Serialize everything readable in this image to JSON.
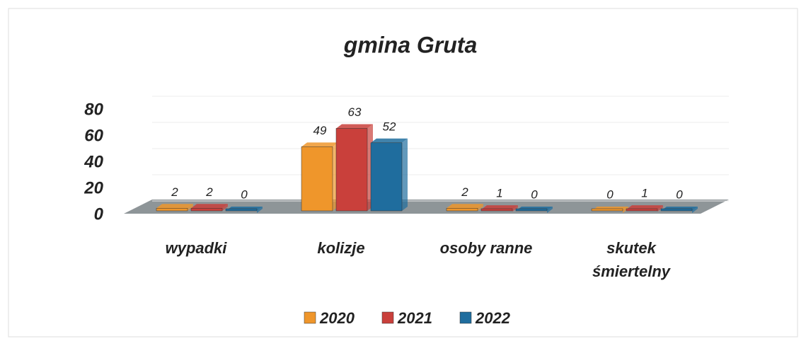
{
  "chart_data": {
    "type": "bar",
    "title": "gmina Gruta",
    "categories": [
      "wypadki",
      "kolizje",
      "osoby ranne",
      "skutek śmiertelny"
    ],
    "series": [
      {
        "name": "2020",
        "color": "#ef962b",
        "values": [
          2,
          49,
          2,
          0
        ]
      },
      {
        "name": "2021",
        "color": "#c9403b",
        "values": [
          2,
          63,
          1,
          1
        ]
      },
      {
        "name": "2022",
        "color": "#1f6d9e",
        "values": [
          0,
          52,
          0,
          0
        ]
      }
    ],
    "ylim": [
      0,
      80
    ],
    "yticks": [
      0,
      20,
      40,
      60,
      80
    ],
    "grid": true,
    "legend": "bottom"
  }
}
